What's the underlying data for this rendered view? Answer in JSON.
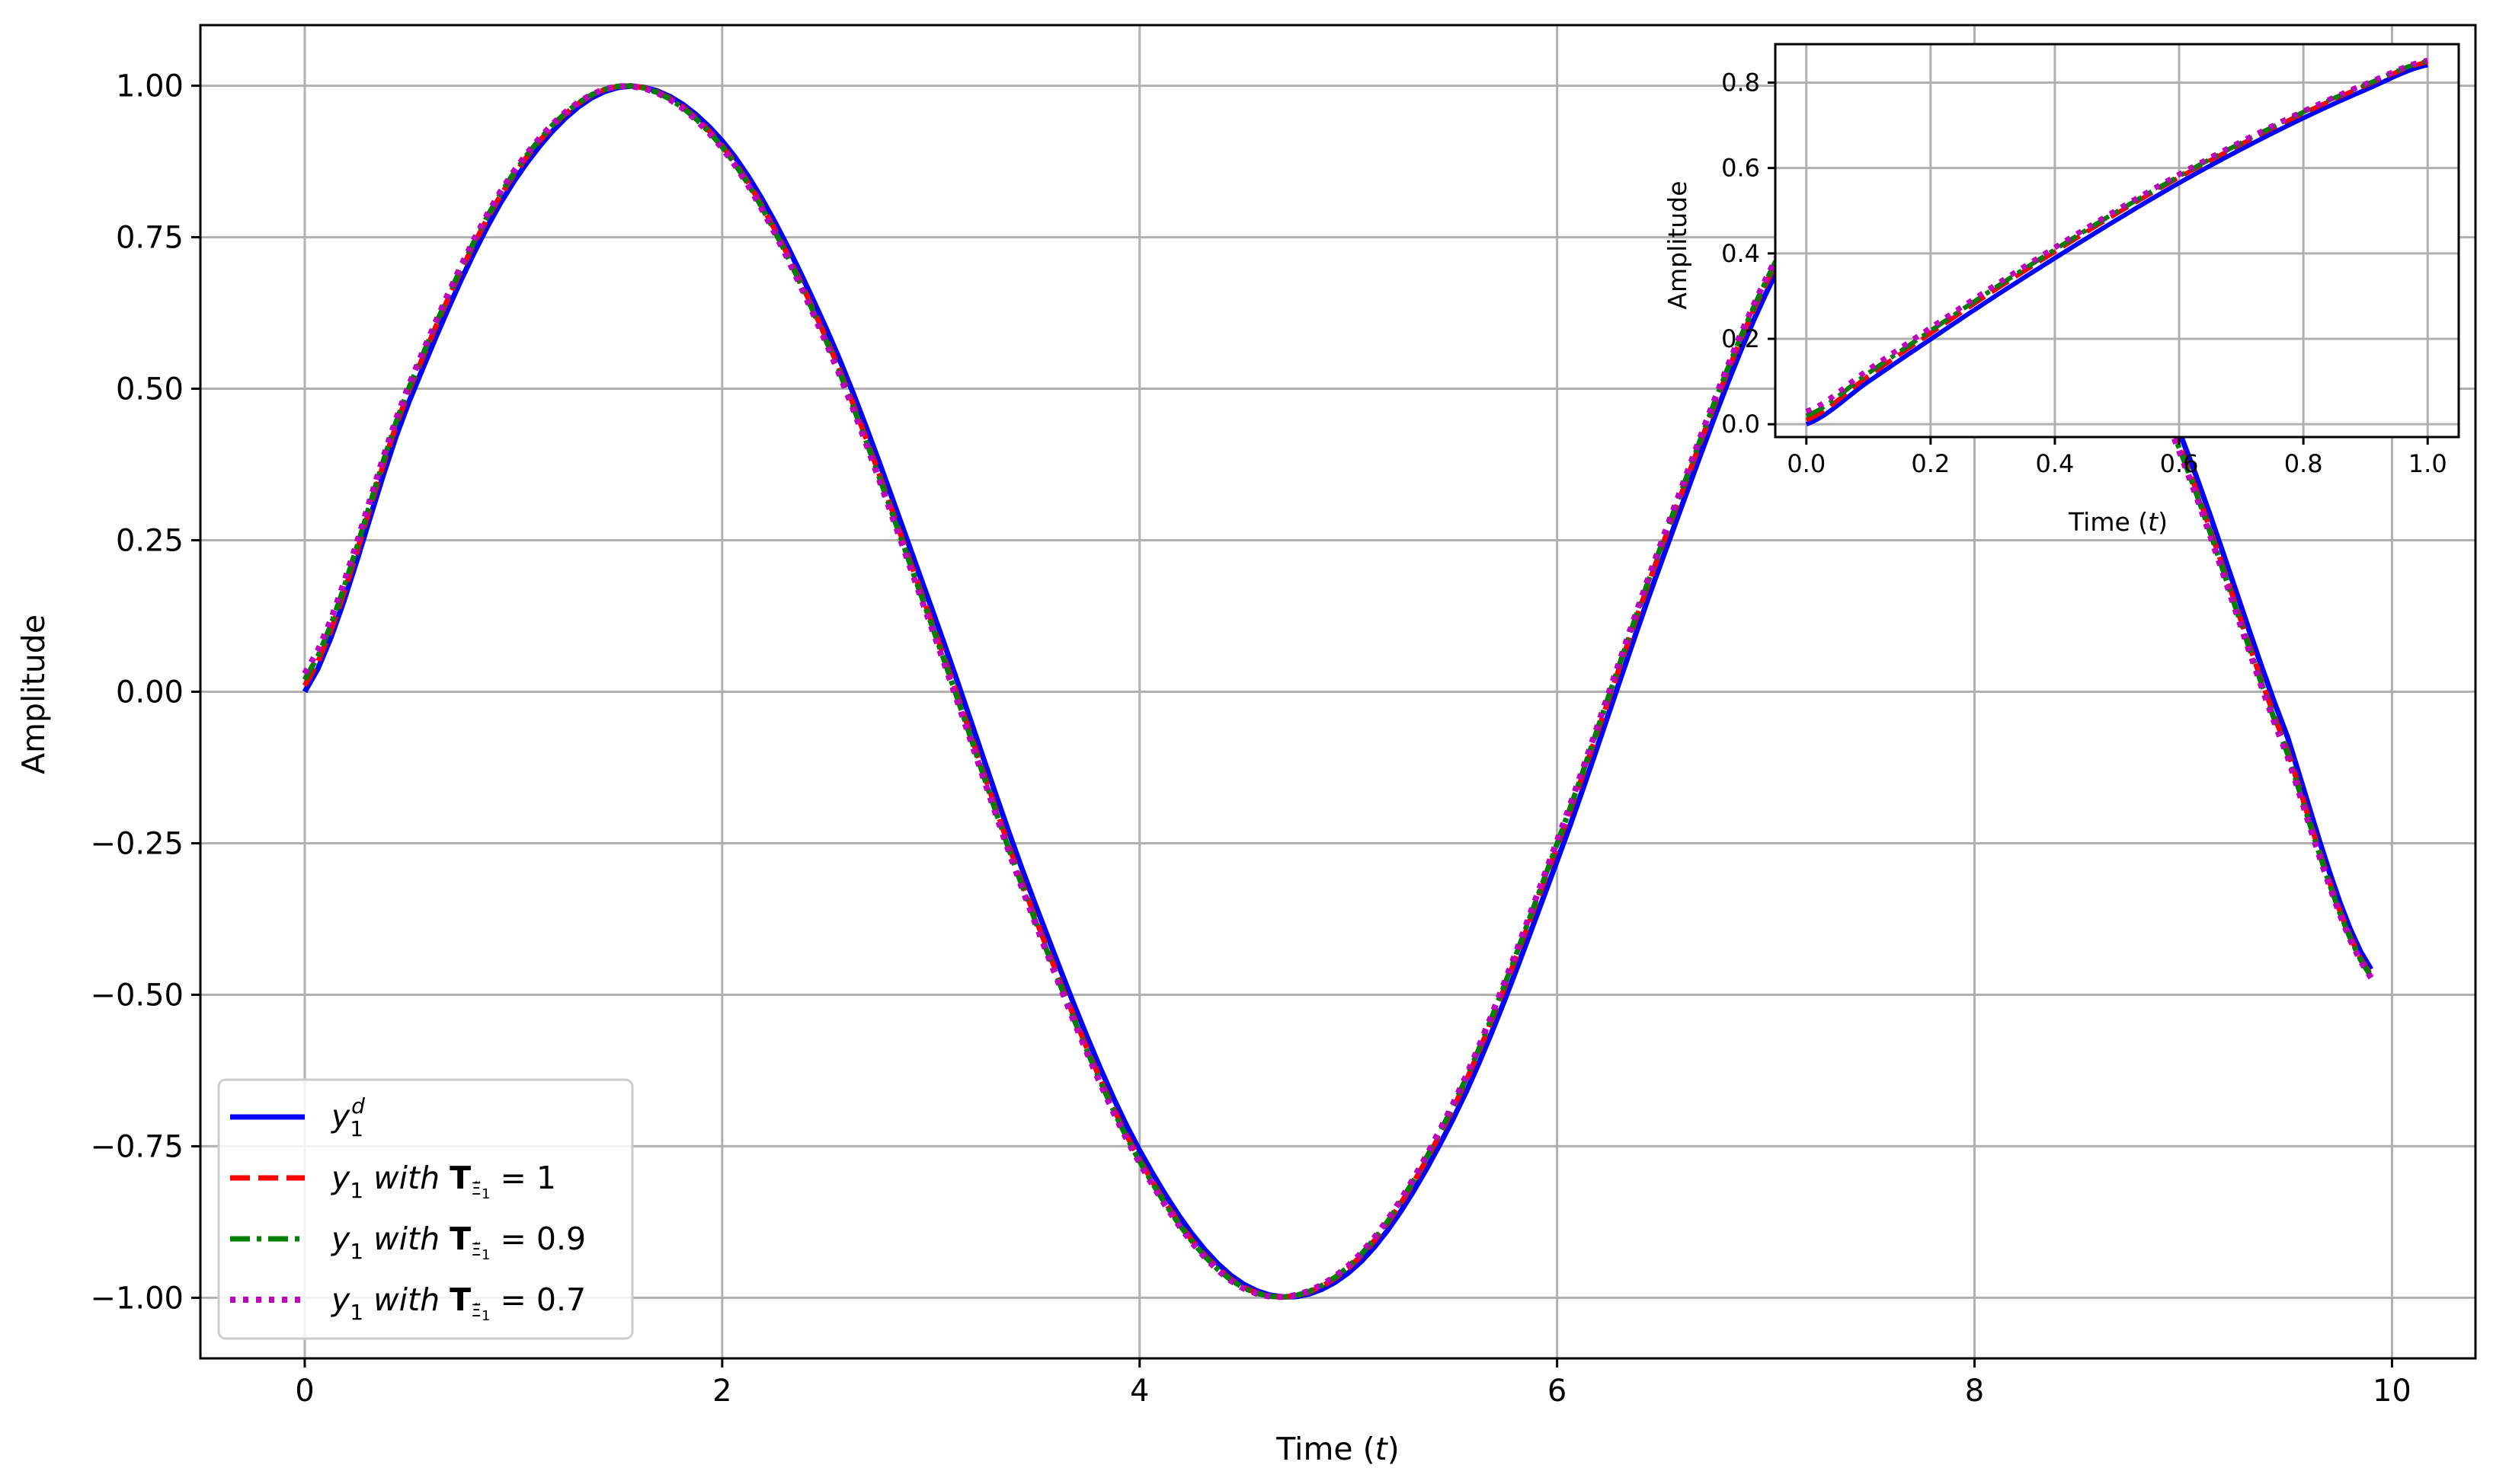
{
  "chart_data": [
    {
      "type": "line",
      "xlabel": "Time (t)",
      "ylabel": "Amplitude",
      "xlim": [
        -0.5,
        10.4
      ],
      "ylim": [
        -1.1,
        1.1
      ],
      "xticks": [
        0,
        2,
        4,
        6,
        8,
        10
      ],
      "xtick_labels": [
        "0",
        "2",
        "4",
        "6",
        "8",
        "10"
      ],
      "yticks": [
        1.0,
        0.75,
        0.5,
        0.25,
        0.0,
        -0.25,
        -0.5,
        -0.75,
        -1.0
      ],
      "ytick_labels": [
        "1.00",
        "0.75",
        "0.50",
        "0.25",
        "0.00",
        "−0.25",
        "−0.50",
        "−0.75",
        "−1.00"
      ],
      "grid": true,
      "legend_position": "lower-left",
      "x": [
        0.0,
        0.5,
        1.0,
        1.5,
        2.0,
        2.5,
        3.0,
        3.5,
        4.0,
        4.5,
        5.0,
        5.5,
        6.0,
        6.5,
        7.0,
        7.5,
        8.0,
        8.5,
        9.0,
        9.5,
        9.9
      ],
      "series": [
        {
          "name": "y1d",
          "color": "#0000ff",
          "style": "solid",
          "values": [
            0.0,
            0.479,
            0.841,
            0.997,
            0.909,
            0.598,
            0.141,
            -0.351,
            -0.757,
            -0.978,
            -0.959,
            -0.706,
            -0.279,
            0.215,
            0.657,
            0.938,
            0.989,
            0.798,
            0.412,
            -0.075,
            -0.458
          ]
        },
        {
          "name": "y1 with T=1",
          "color": "#ff0000",
          "style": "dashed",
          "values": [
            0.01,
            0.497,
            0.852,
            0.999,
            0.901,
            0.582,
            0.119,
            -0.373,
            -0.772,
            -0.983,
            -0.951,
            -0.689,
            -0.256,
            0.237,
            0.673,
            0.944,
            0.985,
            0.784,
            0.39,
            -0.097,
            -0.468
          ]
        },
        {
          "name": "y1 with T=0.9",
          "color": "#008000",
          "style": "dashdot",
          "values": [
            0.02,
            0.502,
            0.855,
            0.999,
            0.899,
            0.578,
            0.114,
            -0.378,
            -0.775,
            -0.984,
            -0.949,
            -0.685,
            -0.251,
            0.242,
            0.677,
            0.946,
            0.983,
            0.78,
            0.385,
            -0.102,
            -0.47
          ]
        },
        {
          "name": "y1 with T=0.7",
          "color": "#bf00bf",
          "style": "dotted",
          "values": [
            0.03,
            0.507,
            0.858,
            0.999,
            0.897,
            0.574,
            0.109,
            -0.382,
            -0.778,
            -0.985,
            -0.947,
            -0.681,
            -0.246,
            0.247,
            0.681,
            0.947,
            0.982,
            0.776,
            0.38,
            -0.107,
            -0.472
          ]
        }
      ]
    },
    {
      "type": "line",
      "xlabel": "Time (t)",
      "ylabel": "Amplitude",
      "xlim": [
        -0.05,
        1.05
      ],
      "ylim": [
        -0.03,
        0.89
      ],
      "xticks": [
        0.0,
        0.2,
        0.4,
        0.6,
        0.8,
        1.0
      ],
      "xtick_labels": [
        "0.0",
        "0.2",
        "0.4",
        "0.6",
        "0.8",
        "1.0"
      ],
      "yticks": [
        0.0,
        0.2,
        0.4,
        0.6,
        0.8
      ],
      "ytick_labels": [
        "0.0",
        "0.2",
        "0.4",
        "0.6",
        "0.8"
      ],
      "grid": true,
      "x": [
        0.0,
        0.1,
        0.2,
        0.3,
        0.4,
        0.5,
        0.6,
        0.7,
        0.8,
        0.9,
        1.0
      ],
      "series": [
        {
          "name": "y1d",
          "color": "#0000ff",
          "style": "solid",
          "values": [
            0.0,
            0.1,
            0.199,
            0.296,
            0.389,
            0.479,
            0.565,
            0.644,
            0.717,
            0.783,
            0.841
          ]
        },
        {
          "name": "y1 with T=1",
          "color": "#ff0000",
          "style": "dashed",
          "values": [
            0.01,
            0.113,
            0.213,
            0.311,
            0.404,
            0.494,
            0.578,
            0.656,
            0.728,
            0.793,
            0.848
          ]
        },
        {
          "name": "y1 with T=0.9",
          "color": "#008000",
          "style": "dashdot",
          "values": [
            0.02,
            0.12,
            0.219,
            0.316,
            0.409,
            0.498,
            0.581,
            0.659,
            0.731,
            0.795,
            0.85
          ]
        },
        {
          "name": "y1 with T=0.7",
          "color": "#bf00bf",
          "style": "dotted",
          "values": [
            0.03,
            0.128,
            0.226,
            0.322,
            0.414,
            0.502,
            0.585,
            0.662,
            0.733,
            0.797,
            0.852
          ]
        }
      ]
    }
  ],
  "legend": {
    "entries": [
      {
        "base": "y",
        "sub": "1",
        "sup": "d",
        "rest": ""
      },
      {
        "base": "y",
        "sub": "1",
        "mid": " with ",
        "bold": "T",
        "subsub": "Ξ̃",
        "subsubidx": "1",
        "eq": " = 1"
      },
      {
        "base": "y",
        "sub": "1",
        "mid": " with ",
        "bold": "T",
        "subsub": "Ξ̃",
        "subsubidx": "1",
        "eq": " = 0.9"
      },
      {
        "base": "y",
        "sub": "1",
        "mid": " with ",
        "bold": "T",
        "subsub": "Ξ̃",
        "subsubidx": "1",
        "eq": " = 0.7"
      }
    ]
  }
}
